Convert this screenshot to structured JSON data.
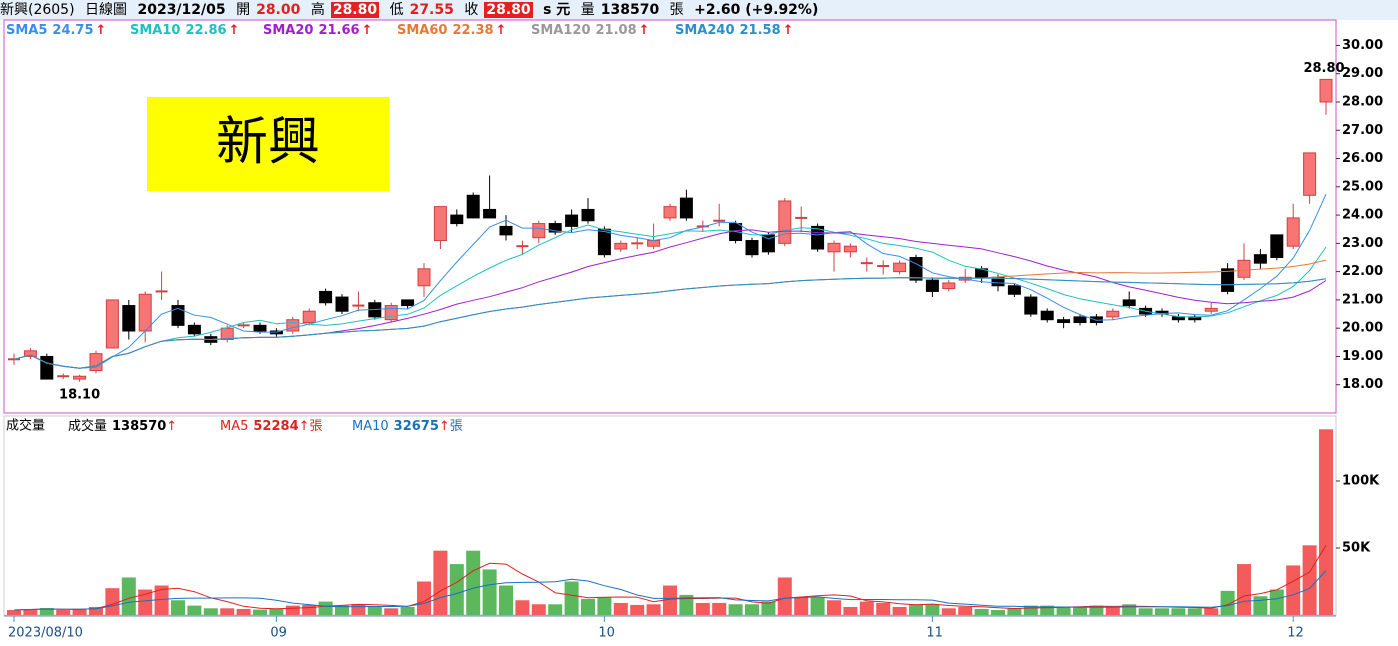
{
  "header": {
    "stock": "新興(2605)",
    "period": "日線圖",
    "date": "2023/12/05",
    "open_label": "開",
    "open": "28.00",
    "high_label": "高",
    "high": "28.80",
    "low_label": "低",
    "low": "27.55",
    "close_label": "收",
    "close": "28.80",
    "unit": "s 元",
    "volume_label": "量",
    "volume": "138570",
    "volume_unit": "張",
    "change": "+2.60 (+9.92%)"
  },
  "badge": "新興",
  "up_symbol": "↑",
  "chart_data": {
    "type": "candlestick",
    "categories": [
      "2023/08/10",
      null,
      null,
      null,
      null,
      null,
      null,
      null,
      null,
      null,
      null,
      null,
      null,
      null,
      null,
      null,
      "09",
      null,
      null,
      null,
      null,
      null,
      null,
      null,
      null,
      null,
      null,
      null,
      null,
      null,
      null,
      null,
      null,
      null,
      null,
      null,
      "10",
      null,
      null,
      null,
      null,
      null,
      null,
      null,
      null,
      null,
      null,
      null,
      null,
      null,
      null,
      null,
      null,
      null,
      null,
      null,
      "11",
      null,
      null,
      null,
      null,
      null,
      null,
      null,
      null,
      null,
      null,
      null,
      null,
      null,
      null,
      null,
      null,
      null,
      null,
      null,
      null,
      null,
      "12",
      null,
      null
    ],
    "open": [
      18.9,
      19.0,
      19.0,
      18.25,
      18.2,
      18.5,
      19.3,
      20.8,
      19.9,
      21.3,
      20.8,
      20.1,
      19.7,
      19.6,
      20.1,
      20.1,
      19.9,
      19.9,
      20.2,
      21.3,
      21.1,
      20.8,
      20.9,
      20.3,
      21.0,
      21.5,
      23.1,
      24.0,
      24.7,
      24.2,
      23.6,
      22.9,
      23.2,
      23.7,
      24.0,
      24.2,
      23.5,
      22.8,
      23.0,
      22.9,
      23.9,
      24.6,
      23.6,
      23.8,
      23.7,
      23.1,
      23.3,
      23.0,
      23.9,
      23.6,
      22.7,
      22.7,
      22.3,
      22.2,
      22.0,
      22.5,
      21.7,
      21.4,
      21.7,
      22.1,
      21.8,
      21.5,
      21.1,
      20.6,
      20.3,
      20.4,
      20.4,
      20.4,
      21.0,
      20.7,
      20.6,
      20.4,
      20.4,
      20.6,
      22.1,
      21.8,
      22.6,
      23.3,
      22.9,
      24.7,
      28.0
    ],
    "high": [
      19.1,
      19.3,
      19.1,
      18.4,
      18.35,
      19.2,
      21.0,
      21.0,
      21.3,
      22.0,
      21.0,
      20.2,
      19.8,
      20.1,
      20.2,
      20.2,
      20.0,
      20.4,
      20.7,
      21.4,
      21.2,
      21.3,
      21.0,
      20.9,
      21.0,
      22.3,
      24.3,
      24.2,
      24.8,
      25.4,
      24.0,
      23.1,
      23.8,
      23.8,
      24.2,
      24.6,
      23.6,
      23.1,
      23.2,
      23.7,
      24.4,
      24.9,
      23.8,
      24.4,
      23.8,
      23.2,
      23.4,
      24.6,
      24.3,
      23.7,
      23.1,
      23.0,
      22.5,
      22.4,
      22.4,
      22.6,
      21.8,
      21.7,
      22.1,
      22.2,
      21.9,
      21.6,
      21.2,
      20.7,
      20.4,
      20.5,
      20.5,
      20.7,
      21.3,
      20.8,
      20.7,
      20.5,
      20.5,
      20.9,
      22.3,
      23.0,
      22.8,
      23.3,
      24.4,
      26.2,
      28.8
    ],
    "low": [
      18.7,
      18.9,
      18.2,
      18.2,
      18.1,
      18.4,
      19.3,
      19.6,
      19.5,
      21.0,
      20.0,
      19.7,
      19.4,
      19.5,
      20.0,
      19.8,
      19.7,
      19.8,
      20.1,
      20.8,
      20.5,
      20.6,
      20.3,
      20.2,
      20.7,
      21.1,
      22.8,
      23.6,
      23.9,
      23.9,
      23.1,
      22.6,
      23.0,
      23.3,
      23.4,
      23.7,
      22.5,
      22.7,
      22.8,
      22.8,
      23.8,
      23.8,
      23.4,
      23.6,
      23.0,
      22.5,
      22.6,
      22.9,
      23.4,
      22.7,
      22.0,
      22.5,
      22.0,
      21.9,
      21.9,
      21.6,
      21.1,
      21.3,
      21.6,
      21.6,
      21.3,
      21.1,
      20.4,
      20.2,
      20.0,
      20.1,
      20.1,
      20.3,
      20.7,
      20.4,
      20.4,
      20.2,
      20.2,
      20.5,
      21.2,
      21.7,
      22.1,
      22.4,
      22.8,
      24.4,
      27.55
    ],
    "close": [
      18.9,
      19.2,
      18.2,
      18.3,
      18.3,
      19.1,
      21.0,
      19.9,
      21.2,
      21.3,
      20.1,
      19.8,
      19.5,
      20.0,
      20.1,
      19.9,
      19.8,
      20.3,
      20.6,
      20.9,
      20.6,
      20.8,
      20.4,
      20.8,
      20.8,
      22.1,
      24.3,
      23.7,
      23.9,
      23.9,
      23.3,
      22.9,
      23.7,
      23.4,
      23.6,
      23.8,
      22.6,
      23.0,
      23.0,
      23.1,
      24.3,
      23.9,
      23.6,
      23.8,
      23.1,
      22.6,
      22.7,
      24.5,
      23.9,
      22.8,
      23.0,
      22.9,
      22.3,
      22.2,
      22.3,
      21.7,
      21.3,
      21.6,
      21.8,
      21.8,
      21.5,
      21.2,
      20.5,
      20.3,
      20.2,
      20.2,
      20.2,
      20.6,
      20.8,
      20.5,
      20.5,
      20.3,
      20.3,
      20.7,
      21.3,
      22.4,
      22.3,
      22.5,
      23.9,
      26.2,
      28.8
    ],
    "volume": [
      3700,
      4500,
      5200,
      3700,
      4500,
      6000,
      20000,
      28000,
      19000,
      22000,
      11000,
      7000,
      5000,
      5000,
      4500,
      4000,
      4500,
      7000,
      7500,
      10000,
      7000,
      8000,
      6000,
      5000,
      6000,
      25000,
      48000,
      38000,
      48000,
      34000,
      22000,
      11000,
      8000,
      8000,
      25000,
      12000,
      13000,
      9000,
      7500,
      8000,
      22000,
      15000,
      9000,
      9000,
      8000,
      8000,
      10000,
      28000,
      13000,
      13000,
      11000,
      6000,
      10000,
      9000,
      6000,
      7500,
      8000,
      5000,
      6000,
      4500,
      3700,
      5000,
      7000,
      7000,
      6000,
      6000,
      7000,
      6000,
      8000,
      5000,
      5000,
      5000,
      5000,
      5000,
      18000,
      38000,
      14000,
      19000,
      37000,
      52000,
      138570
    ],
    "ylim": [
      17.0,
      30.9
    ],
    "yticks": [
      {
        "value": 18,
        "label": "18.00"
      },
      {
        "value": 19,
        "label": "19.00"
      },
      {
        "value": 20,
        "label": "20.00"
      },
      {
        "value": 21,
        "label": "21.00"
      },
      {
        "value": 22,
        "label": "22.00"
      },
      {
        "value": 23,
        "label": "23.00"
      },
      {
        "value": 24,
        "label": "24.00"
      },
      {
        "value": 25,
        "label": "25.00"
      },
      {
        "value": 26,
        "label": "26.00"
      },
      {
        "value": 27,
        "label": "27.00"
      },
      {
        "value": 28,
        "label": "28.00"
      },
      {
        "value": 29,
        "label": "29.00"
      },
      {
        "value": 30,
        "label": "30.00"
      }
    ],
    "y2lim": [
      0,
      147000
    ],
    "y2ticks": [
      {
        "value": 50000,
        "label": "50K"
      },
      {
        "value": 100000,
        "label": "100K"
      }
    ],
    "up_color": "#f87575",
    "down_color": "#000000",
    "vol_up_color": "#f45b5b",
    "vol_down_color": "#5cb85c",
    "price_ma": [
      {
        "name": "SMA5",
        "value": "24.75",
        "period": 5,
        "color": "#3a8ee6"
      },
      {
        "name": "SMA10",
        "value": "22.86",
        "period": 10,
        "color": "#1fc0c0"
      },
      {
        "name": "SMA20",
        "value": "21.66",
        "period": 20,
        "color": "#a020d0"
      },
      {
        "name": "SMA60",
        "value": "22.38",
        "period": 60,
        "color": "#e8773a"
      },
      {
        "name": "SMA120",
        "value": "21.08",
        "period": 120,
        "color": "#999999"
      },
      {
        "name": "SMA240",
        "value": "21.58",
        "period": 240,
        "color": "#2a90c8"
      }
    ],
    "volume_title": "成交量",
    "volume_legend": [
      {
        "name": "成交量",
        "value": "138570",
        "color": "#000000"
      },
      {
        "name": "MA5",
        "value": "52284",
        "period": 5,
        "unit": "張",
        "color": "#e02020"
      },
      {
        "name": "MA10",
        "value": "32675",
        "period": 10,
        "unit": "張",
        "color": "#1a70c0"
      }
    ],
    "annotations": [
      {
        "text": "18.10",
        "index": 4
      },
      {
        "text": "28.80",
        "index": 80
      }
    ]
  }
}
